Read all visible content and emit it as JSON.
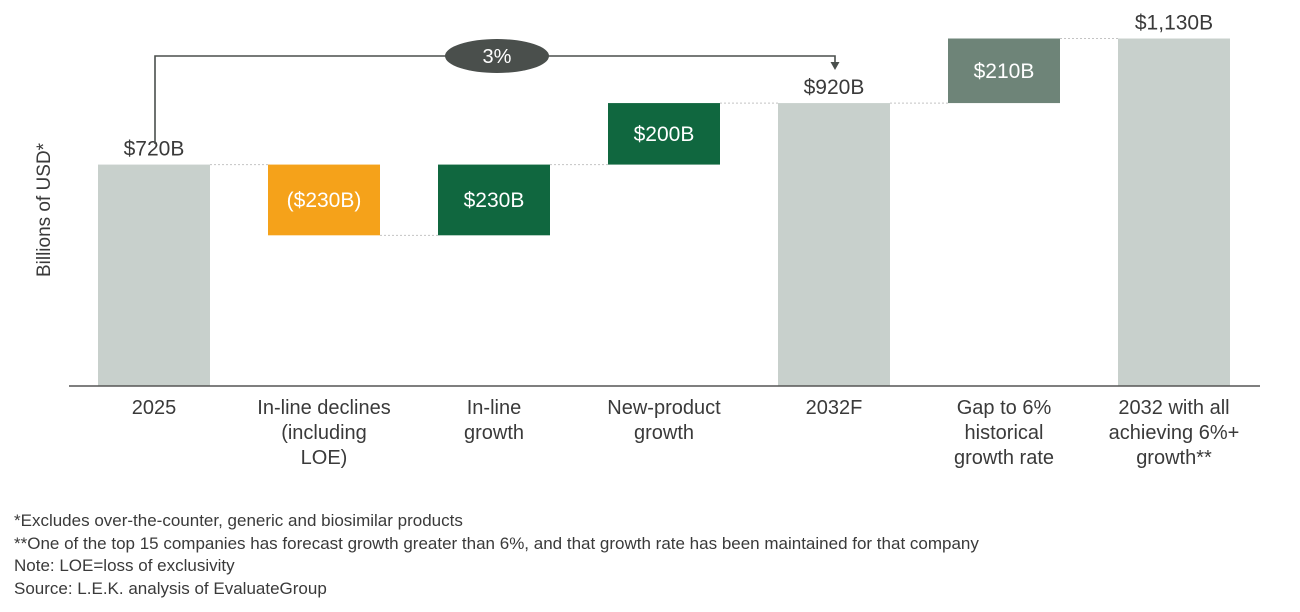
{
  "chart_data": {
    "type": "bar",
    "subtype": "waterfall",
    "ylabel": "Billions of USD*",
    "categories": [
      [
        "2025"
      ],
      [
        "In-line declines",
        "(including",
        "LOE)"
      ],
      [
        "In-line",
        "growth"
      ],
      [
        "New-product",
        "growth"
      ],
      [
        "2032F"
      ],
      [
        "Gap to 6%",
        "historical",
        "growth rate"
      ],
      [
        "2032 with all",
        "achieving 6%+",
        "growth**"
      ]
    ],
    "bars": [
      {
        "kind": "total",
        "start": 0,
        "end": 720,
        "label": "$720B",
        "label_pos": "above",
        "color": "#c8d0cc"
      },
      {
        "kind": "decrease",
        "start": 720,
        "end": 490,
        "label": "($230B)",
        "label_pos": "inside",
        "color": "#f5a21a"
      },
      {
        "kind": "increase",
        "start": 490,
        "end": 720,
        "label": "$230B",
        "label_pos": "inside",
        "color": "#10673f"
      },
      {
        "kind": "increase",
        "start": 720,
        "end": 920,
        "label": "$200B",
        "label_pos": "inside",
        "color": "#10673f"
      },
      {
        "kind": "total",
        "start": 0,
        "end": 920,
        "label": "$920B",
        "label_pos": "above",
        "color": "#c8d0cc"
      },
      {
        "kind": "increase",
        "start": 920,
        "end": 1130,
        "label": "$210B",
        "label_pos": "inside",
        "color": "#6e8478"
      },
      {
        "kind": "total",
        "start": 0,
        "end": 1130,
        "label": "$1,130B",
        "label_pos": "above",
        "color": "#c8d0cc"
      }
    ],
    "growth_annotation": {
      "label": "3%",
      "from_category": "2025",
      "to_category": "2032F"
    },
    "ylim": [
      0,
      1130
    ],
    "grid": false
  },
  "footnotes": {
    "excludes": "*Excludes over-the-counter, generic and biosimilar products",
    "one_of": "**One of the top 15 companies has forecast growth greater than 6%, and that growth rate has been maintained for that company",
    "note": "Note: LOE=loss of exclusivity",
    "source": "Source: L.E.K. analysis of EvaluateGroup"
  },
  "colors": {
    "total": "#c8d0cc",
    "decline": "#f5a21a",
    "growth": "#10673f",
    "gap": "#6e8478",
    "text": "#3a3a3a",
    "annotation": "#4a4f4c"
  }
}
